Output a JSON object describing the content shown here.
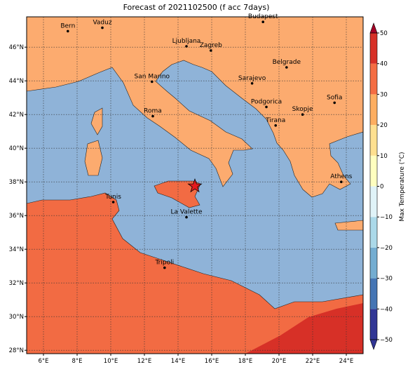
{
  "map": {
    "title": "Forecast of 2021102500 (f acc 7days)",
    "xlim": [
      5,
      25
    ],
    "ylim": [
      27.8,
      47.8
    ],
    "xticks": [
      {
        "value": 6,
        "label": "6°E"
      },
      {
        "value": 8,
        "label": "8°E"
      },
      {
        "value": 10,
        "label": "10°E"
      },
      {
        "value": 12,
        "label": "12°E"
      },
      {
        "value": 14,
        "label": "14°E"
      },
      {
        "value": 16,
        "label": "16°E"
      },
      {
        "value": 18,
        "label": "18°E"
      },
      {
        "value": 20,
        "label": "20°E"
      },
      {
        "value": 22,
        "label": "22°E"
      },
      {
        "value": 24,
        "label": "24°E"
      }
    ],
    "yticks": [
      {
        "value": 28,
        "label": "28°N"
      },
      {
        "value": 30,
        "label": "30°N"
      },
      {
        "value": 32,
        "label": "32°N"
      },
      {
        "value": 34,
        "label": "34°N"
      },
      {
        "value": 36,
        "label": "36°N"
      },
      {
        "value": 38,
        "label": "38°N"
      },
      {
        "value": 40,
        "label": "40°N"
      },
      {
        "value": 42,
        "label": "42°N"
      },
      {
        "value": 44,
        "label": "44°N"
      },
      {
        "value": 46,
        "label": "46°N"
      }
    ],
    "grid": true,
    "cities": [
      {
        "name": "Bern",
        "lon": 7.45,
        "lat": 46.95
      },
      {
        "name": "Vaduz",
        "lon": 9.5,
        "lat": 47.15
      },
      {
        "name": "Budapest",
        "lon": 19.05,
        "lat": 47.5
      },
      {
        "name": "Ljubljana",
        "lon": 14.5,
        "lat": 46.05
      },
      {
        "name": "Zagreb",
        "lon": 15.95,
        "lat": 45.8
      },
      {
        "name": "San Marino",
        "lon": 12.45,
        "lat": 43.95
      },
      {
        "name": "Sarajevo",
        "lon": 18.4,
        "lat": 43.85
      },
      {
        "name": "Belgrade",
        "lon": 20.45,
        "lat": 44.8
      },
      {
        "name": "Sofia",
        "lon": 23.3,
        "lat": 42.7
      },
      {
        "name": "Podgorica",
        "lon": 19.25,
        "lat": 42.45
      },
      {
        "name": "Skopje",
        "lon": 21.4,
        "lat": 42.0
      },
      {
        "name": "Roma",
        "lon": 12.5,
        "lat": 41.9
      },
      {
        "name": "Tirana",
        "lon": 19.8,
        "lat": 41.35
      },
      {
        "name": "Athens",
        "lon": 23.7,
        "lat": 38.0
      },
      {
        "name": "Tunis",
        "lon": 10.15,
        "lat": 36.8
      },
      {
        "name": "La Valette",
        "lon": 14.5,
        "lat": 35.9
      },
      {
        "name": "Tripoli",
        "lon": 13.2,
        "lat": 32.9
      }
    ],
    "star": {
      "lon": 15.0,
      "lat": 37.75,
      "color": "#e31a1c"
    },
    "colorbar": {
      "label": "Max Temperature (°C)",
      "lim": [
        -50,
        50
      ],
      "colors": [
        "#313695",
        "#4575b4",
        "#74add1",
        "#abd9e9",
        "#e0f3f8",
        "#ffffbf",
        "#fee090",
        "#fdae61",
        "#f46d43",
        "#d73027",
        "#a50026"
      ],
      "ticks": [
        {
          "value": -50,
          "label": "−50"
        },
        {
          "value": -40,
          "label": "−40"
        },
        {
          "value": -30,
          "label": "−30"
        },
        {
          "value": -20,
          "label": "−20"
        },
        {
          "value": -10,
          "label": "−10"
        },
        0,
        10,
        20,
        30,
        40,
        50
      ]
    }
  }
}
